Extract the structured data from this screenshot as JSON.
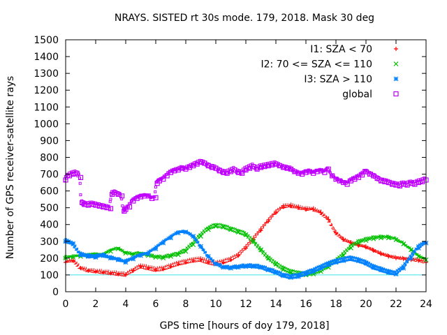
{
  "chart_data": {
    "type": "scatter",
    "title": "NRAYS. SISTED rt 30s mode. 179, 2018. Mask 30 deg",
    "xlabel": "GPS time [hours of doy 179, 2018]",
    "ylabel": "Number of GPS receiver-satellite rays",
    "xlim": [
      0,
      24
    ],
    "ylim": [
      0,
      1500
    ],
    "xticks": [
      0,
      2,
      4,
      6,
      8,
      10,
      12,
      14,
      16,
      18,
      20,
      22,
      24
    ],
    "yticks": [
      0,
      100,
      200,
      300,
      400,
      500,
      600,
      700,
      800,
      900,
      1000,
      1100,
      1200,
      1300,
      1400,
      1500
    ],
    "grid": false,
    "legend_position": "top-right",
    "reference_line": {
      "y": 100,
      "color": "#40e0e0"
    },
    "series": [
      {
        "name": "I1: SZA < 70",
        "marker": "plus",
        "color": "#ff0000",
        "x": [
          0,
          0.5,
          1,
          1.5,
          2,
          2.5,
          3,
          3.5,
          4,
          4.5,
          5,
          5.5,
          6,
          6.5,
          7,
          7.5,
          8,
          8.5,
          9,
          9.5,
          10,
          10.5,
          11,
          11.5,
          12,
          12.5,
          13,
          13.5,
          14,
          14.5,
          15,
          15.5,
          16,
          16.5,
          17,
          17.5,
          18,
          18.5,
          19,
          19.5,
          20,
          20.5,
          21,
          21.5,
          22,
          22.5,
          23,
          23.5,
          24
        ],
        "y": [
          175,
          185,
          140,
          125,
          120,
          115,
          110,
          105,
          100,
          125,
          150,
          140,
          130,
          135,
          150,
          165,
          175,
          185,
          190,
          175,
          165,
          175,
          190,
          215,
          260,
          310,
          365,
          420,
          470,
          505,
          510,
          500,
          490,
          490,
          470,
          430,
          350,
          310,
          290,
          275,
          265,
          245,
          225,
          210,
          200,
          195,
          190,
          185,
          175
        ]
      },
      {
        "name": "I2: 70 <= SZA <= 110",
        "marker": "cross",
        "color": "#00c000",
        "x": [
          0,
          0.5,
          1,
          1.5,
          2,
          2.5,
          3,
          3.5,
          4,
          4.5,
          5,
          5.5,
          6,
          6.5,
          7,
          7.5,
          8,
          8.5,
          9,
          9.5,
          10,
          10.5,
          11,
          11.5,
          12,
          12.5,
          13,
          13.5,
          14,
          14.5,
          15,
          15.5,
          16,
          16.5,
          17,
          17.5,
          18,
          18.5,
          19,
          19.5,
          20,
          20.5,
          21,
          21.5,
          22,
          22.5,
          23,
          23.5,
          24
        ],
        "y": [
          200,
          205,
          210,
          215,
          220,
          215,
          240,
          255,
          230,
          220,
          225,
          215,
          205,
          200,
          210,
          220,
          240,
          280,
          330,
          370,
          390,
          385,
          370,
          355,
          340,
          300,
          250,
          200,
          165,
          135,
          115,
          105,
          100,
          105,
          120,
          145,
          175,
          215,
          260,
          290,
          305,
          315,
          320,
          320,
          310,
          285,
          250,
          210,
          190
        ]
      },
      {
        "name": "I3: SZA > 110",
        "marker": "star",
        "color": "#0080ff",
        "x": [
          0,
          0.5,
          1,
          1.5,
          2,
          2.5,
          3,
          3.5,
          4,
          4.5,
          5,
          5.5,
          6,
          6.5,
          7,
          7.5,
          8,
          8.5,
          9,
          9.5,
          10,
          10.5,
          11,
          11.5,
          12,
          12.5,
          13,
          13.5,
          14,
          14.5,
          15,
          15.5,
          16,
          16.5,
          17,
          17.5,
          18,
          18.5,
          19,
          19.5,
          20,
          20.5,
          21,
          21.5,
          22,
          22.5,
          23,
          23.5,
          24
        ],
        "y": [
          300,
          285,
          220,
          210,
          205,
          215,
          200,
          190,
          175,
          195,
          215,
          225,
          255,
          290,
          320,
          350,
          355,
          330,
          270,
          210,
          165,
          145,
          140,
          145,
          150,
          150,
          145,
          130,
          115,
          95,
          85,
          90,
          105,
          120,
          140,
          160,
          175,
          185,
          195,
          185,
          170,
          145,
          130,
          115,
          105,
          140,
          200,
          260,
          290
        ]
      },
      {
        "name": "global",
        "marker": "square",
        "color": "#c000ff",
        "x": [
          0,
          0.25,
          0.5,
          0.75,
          1,
          1.1,
          1.25,
          1.5,
          1.75,
          2,
          2.25,
          2.5,
          2.75,
          3,
          3.1,
          3.25,
          3.5,
          3.75,
          3.9,
          4,
          4.25,
          4.5,
          4.75,
          5,
          5.25,
          5.5,
          5.75,
          6,
          6.1,
          6.25,
          6.5,
          6.75,
          7,
          7.25,
          7.5,
          7.75,
          8,
          8.25,
          8.5,
          8.75,
          9,
          9.25,
          9.5,
          9.75,
          10,
          10.25,
          10.5,
          10.75,
          11,
          11.25,
          11.5,
          11.75,
          12,
          12.25,
          12.5,
          12.75,
          13,
          13.25,
          13.5,
          13.75,
          14,
          14.25,
          14.5,
          14.75,
          15,
          15.25,
          15.5,
          15.75,
          16,
          16.25,
          16.5,
          16.75,
          17,
          17.25,
          17.5,
          17.75,
          18,
          18.25,
          18.5,
          18.75,
          19,
          19.25,
          19.5,
          19.75,
          20,
          20.25,
          20.5,
          20.75,
          21,
          21.25,
          21.5,
          21.75,
          22,
          22.25,
          22.5,
          22.75,
          23,
          23.25,
          23.5,
          23.75,
          24
        ],
        "y": [
          665,
          690,
          700,
          705,
          680,
          530,
          520,
          515,
          520,
          515,
          510,
          505,
          500,
          495,
          580,
          590,
          580,
          570,
          480,
          490,
          505,
          540,
          555,
          565,
          570,
          570,
          555,
          560,
          645,
          660,
          670,
          690,
          710,
          720,
          725,
          735,
          730,
          740,
          750,
          760,
          770,
          765,
          750,
          740,
          735,
          720,
          710,
          705,
          715,
          725,
          710,
          705,
          725,
          735,
          745,
          730,
          740,
          745,
          750,
          755,
          760,
          750,
          740,
          735,
          730,
          715,
          705,
          700,
          710,
          715,
          705,
          715,
          720,
          710,
          730,
          690,
          670,
          660,
          650,
          640,
          660,
          670,
          680,
          695,
          715,
          700,
          690,
          675,
          660,
          655,
          650,
          640,
          635,
          630,
          640,
          635,
          645,
          640,
          650,
          655,
          665
        ]
      }
    ]
  }
}
